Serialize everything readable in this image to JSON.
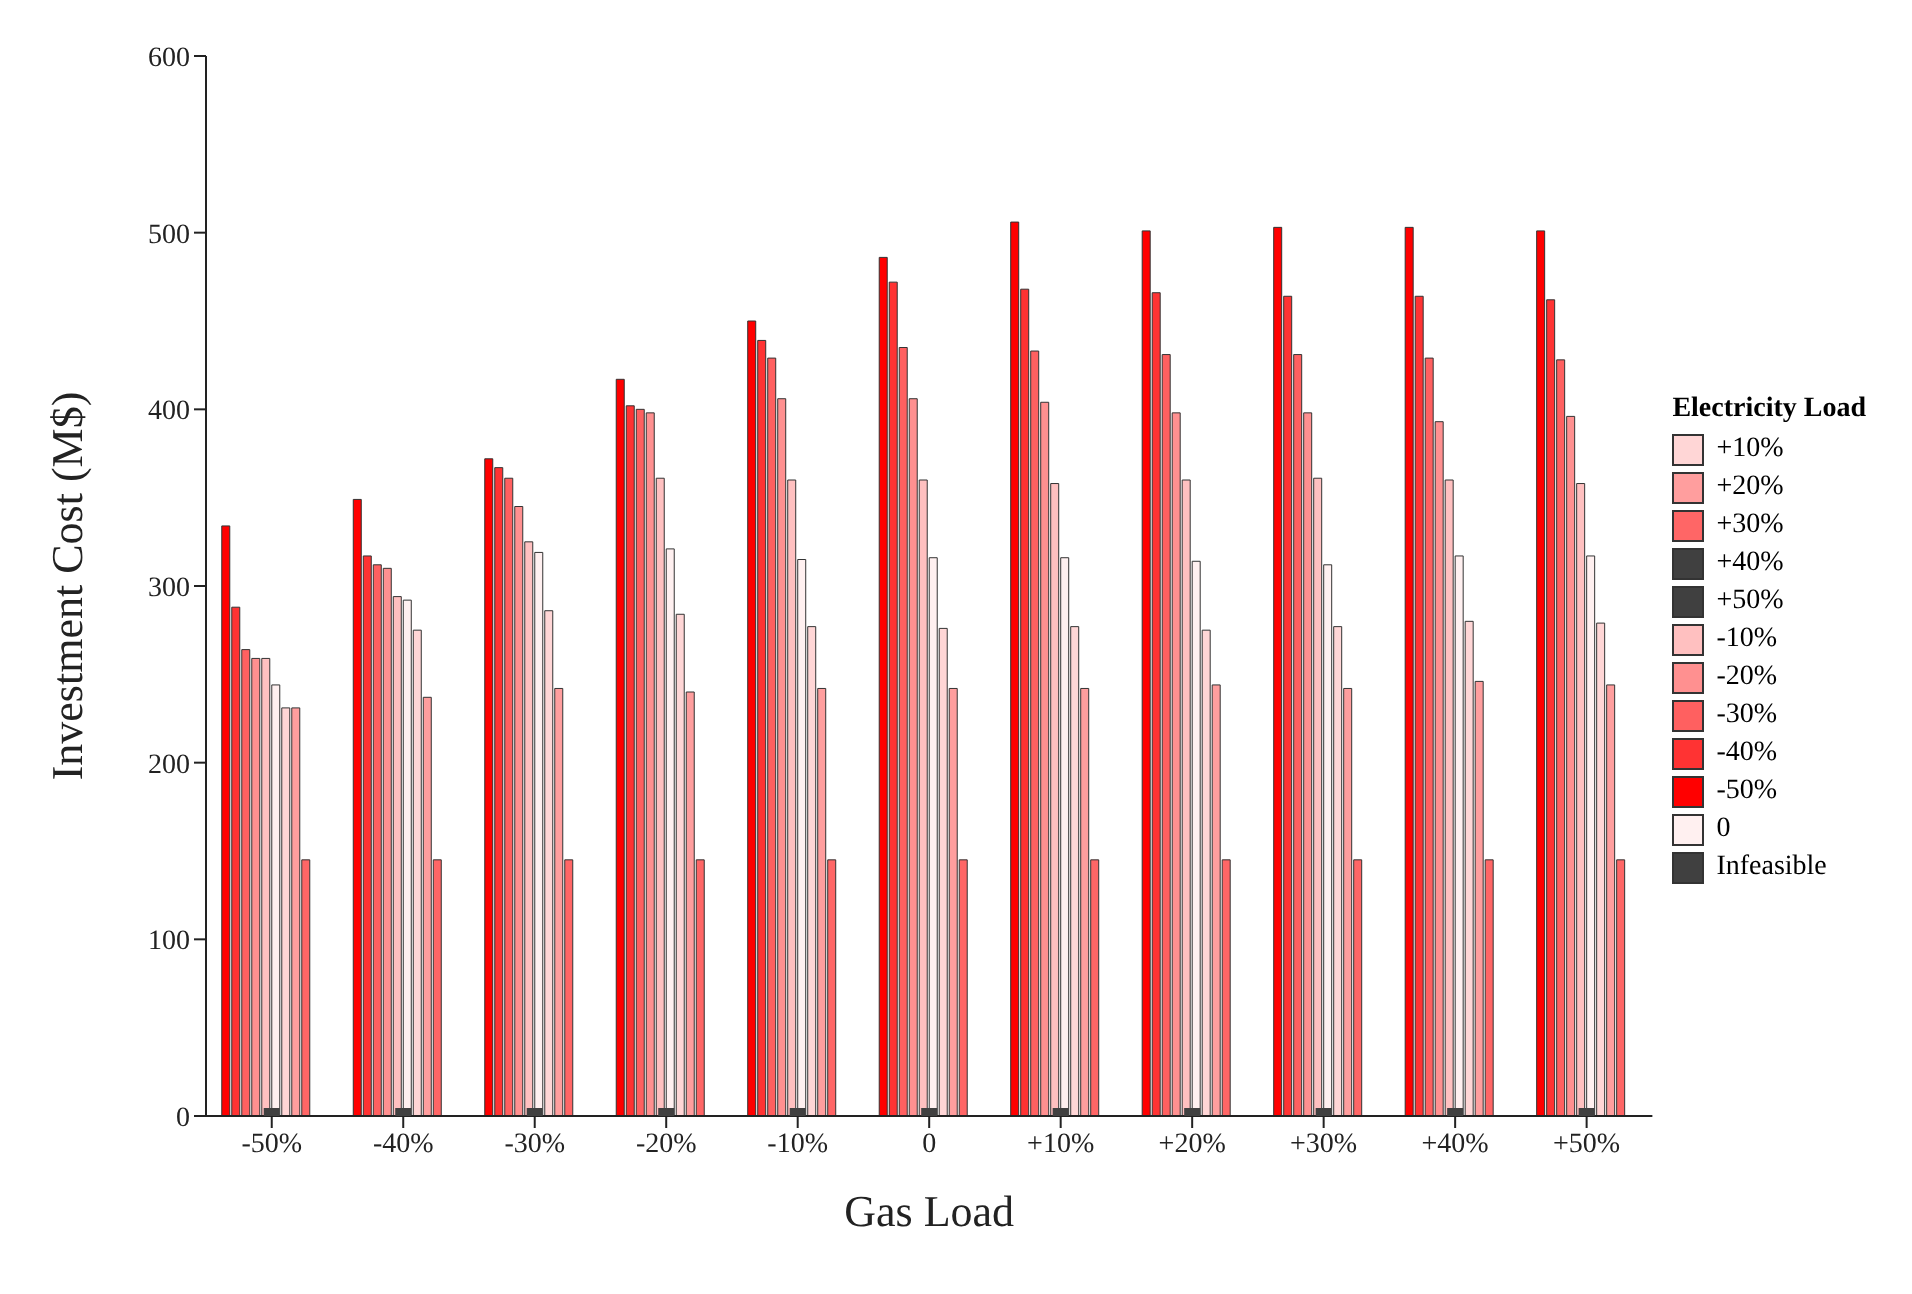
{
  "chart_data": {
    "type": "bar",
    "xlabel": "Gas Load",
    "ylabel": "Investment Cost (M$)",
    "legend_title": "Electricity Load",
    "categories": [
      "-50%",
      "-40%",
      "-30%",
      "-20%",
      "-10%",
      "0",
      "+10%",
      "+20%",
      "+30%",
      "+40%",
      "+50%"
    ],
    "series": [
      {
        "name": "-50%",
        "color": "#ff0000",
        "values": [
          334,
          349,
          372,
          417,
          450,
          486,
          506,
          501,
          503,
          503,
          501
        ]
      },
      {
        "name": "-40%",
        "color": "#ff3333",
        "values": [
          288,
          317,
          367,
          402,
          439,
          472,
          468,
          466,
          464,
          464,
          462
        ]
      },
      {
        "name": "-30%",
        "color": "#ff6060",
        "values": [
          264,
          312,
          361,
          400,
          429,
          435,
          433,
          431,
          431,
          429,
          428
        ]
      },
      {
        "name": "-20%",
        "color": "#ff9090",
        "values": [
          259,
          310,
          345,
          398,
          406,
          406,
          404,
          398,
          398,
          393,
          396
        ]
      },
      {
        "name": "-10%",
        "color": "#ffc0c0",
        "values": [
          259,
          294,
          325,
          361,
          360,
          360,
          358,
          360,
          361,
          360,
          358
        ]
      },
      {
        "name": "0",
        "color": "#fff0f0",
        "values": [
          244,
          292,
          319,
          321,
          315,
          316,
          316,
          314,
          312,
          317,
          317
        ]
      },
      {
        "name": "+10%",
        "color": "#ffd6d6",
        "values": [
          231,
          275,
          286,
          284,
          277,
          276,
          277,
          275,
          277,
          280,
          279
        ]
      },
      {
        "name": "+20%",
        "color": "#ff9e9e",
        "values": [
          231,
          237,
          242,
          240,
          242,
          242,
          242,
          244,
          242,
          246,
          244
        ]
      },
      {
        "name": "+30%",
        "color": "#ff6666",
        "values": [
          145,
          145,
          145,
          145,
          145,
          145,
          145,
          145,
          145,
          145,
          145
        ]
      },
      {
        "name": "+40%",
        "color": "#404040",
        "values": [
          null,
          null,
          null,
          null,
          null,
          null,
          null,
          null,
          null,
          null,
          null
        ]
      },
      {
        "name": "+50%",
        "color": "#404040",
        "values": [
          null,
          null,
          null,
          null,
          null,
          null,
          null,
          null,
          null,
          null,
          null
        ]
      },
      {
        "name": "Infeasible",
        "type": "scatter",
        "color": "#404040",
        "marker": "square",
        "x": [
          "-50%",
          "-40%",
          "-30%",
          "-20%",
          "-10%",
          "0",
          "+10%",
          "+20%",
          "+30%",
          "+40%",
          "+50%"
        ],
        "values": [
          0,
          0,
          0,
          0,
          0,
          0,
          0,
          0,
          0,
          0,
          0
        ]
      }
    ],
    "ylim": [
      0,
      600
    ],
    "yticks": [
      0,
      100,
      200,
      300,
      400,
      500,
      600
    ],
    "legend": "right"
  }
}
